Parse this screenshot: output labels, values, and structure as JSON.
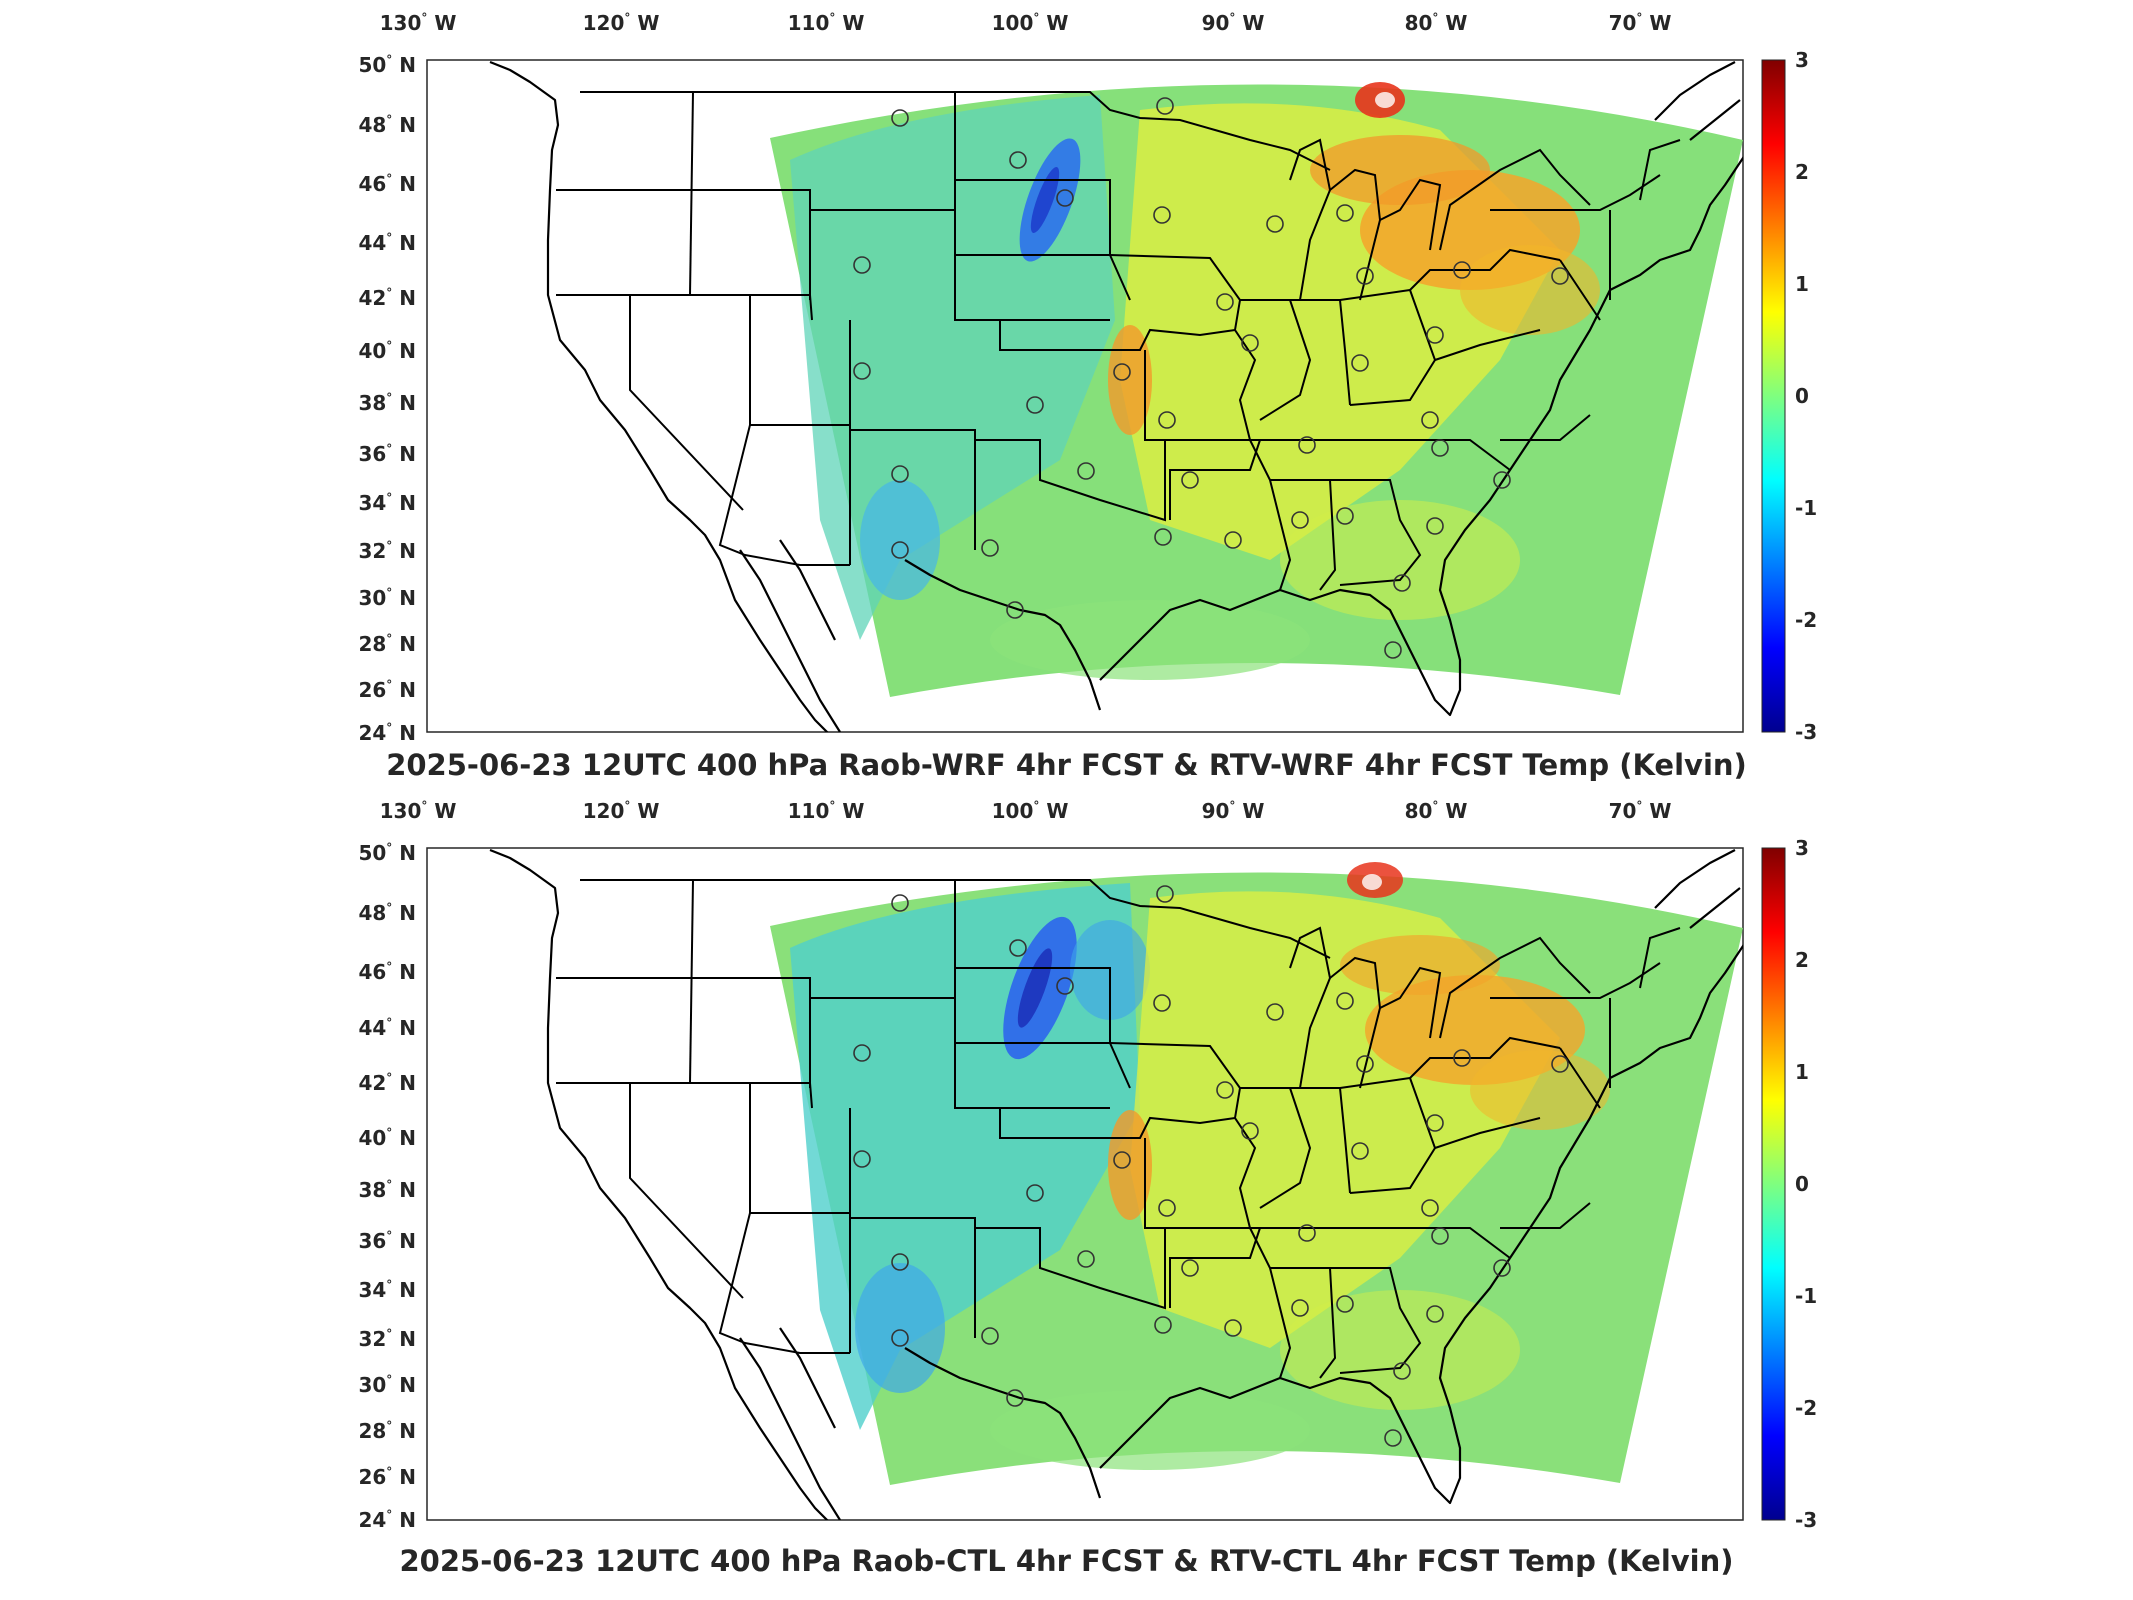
{
  "panels": [
    {
      "title": "2025-06-23 12UTC 400 hPa Raob-WRF 4hr FCST & RTV-WRF 4hr FCST Temp (Kelvin)",
      "lon_labels": [
        "130",
        "120",
        "110",
        "100",
        "90",
        "80",
        "70"
      ],
      "lon_suffix": "W",
      "lat_labels": [
        "50",
        "48",
        "46",
        "44",
        "42",
        "40",
        "38",
        "36",
        "34",
        "32",
        "30",
        "28",
        "26",
        "24"
      ],
      "lat_suffix": "N",
      "colorbar_ticks": [
        "3",
        "2",
        "1",
        "0",
        "-1",
        "-2",
        "-3"
      ]
    },
    {
      "title": "2025-06-23 12UTC 400 hPa Raob-CTL 4hr FCST & RTV-CTL 4hr FCST Temp (Kelvin)",
      "lon_labels": [
        "130",
        "120",
        "110",
        "100",
        "90",
        "80",
        "70"
      ],
      "lon_suffix": "W",
      "lat_labels": [
        "50",
        "48",
        "46",
        "44",
        "42",
        "40",
        "38",
        "36",
        "34",
        "32",
        "30",
        "28",
        "26",
        "24"
      ],
      "lat_suffix": "N",
      "colorbar_ticks": [
        "3",
        "2",
        "1",
        "0",
        "-1",
        "-2",
        "-3"
      ]
    }
  ],
  "colormap": "jet",
  "colors": {
    "dark_blue": "#00008f",
    "blue": "#0000ff",
    "cyan": "#00ffff",
    "green": "#7fff7f",
    "yellow": "#ffff00",
    "orange": "#ff8000",
    "red": "#ff0000",
    "dark_red": "#800000",
    "field_base": "#7fe37f"
  }
}
